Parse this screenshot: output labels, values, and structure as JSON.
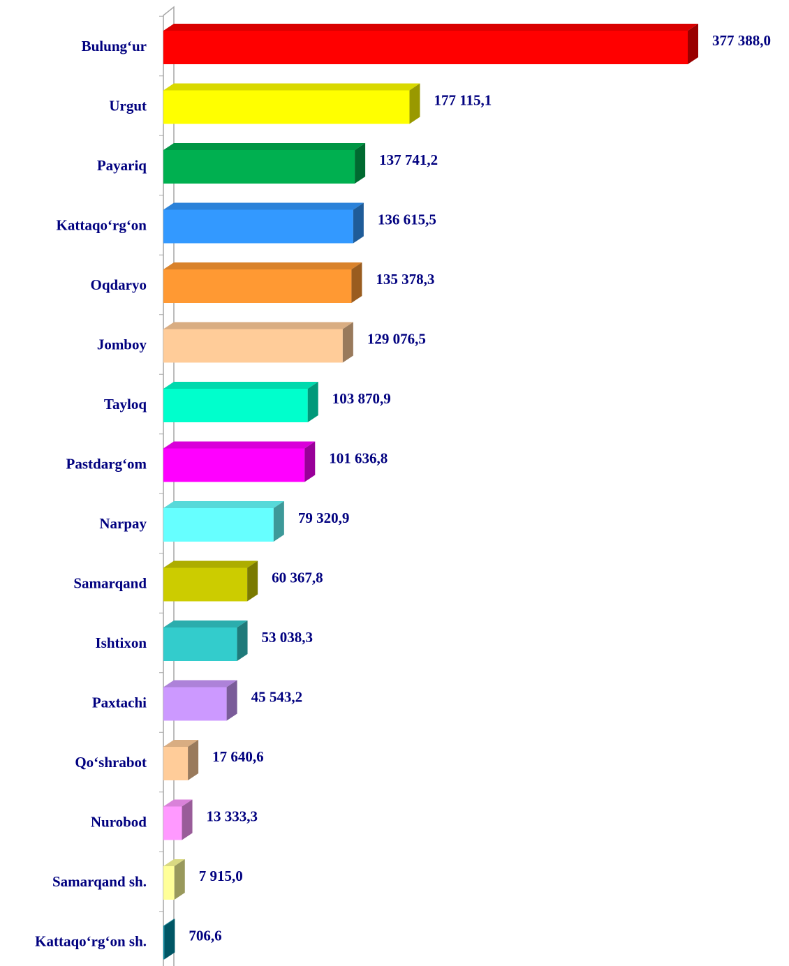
{
  "chart_data": {
    "type": "bar",
    "orientation": "horizontal",
    "three_d": true,
    "categories": [
      "Bulung‘ur",
      "Urgut",
      "Payariq",
      "Kattaqo‘rg‘on",
      "Oqdaryo",
      "Jomboy",
      "Tayloq",
      "Pastdarg‘om",
      "Narpay",
      "Samarqand",
      "Ishtixon",
      "Paxtachi",
      "Qo‘shrabot",
      "Nurobod",
      "Samarqand sh.",
      "Kattaqo‘rg‘on sh."
    ],
    "values": [
      377388.0,
      177115.1,
      137741.2,
      136615.5,
      135378.3,
      129076.5,
      103870.9,
      101636.8,
      79320.9,
      60367.8,
      53038.3,
      45543.2,
      17640.6,
      13333.3,
      7915.0,
      706.6
    ],
    "value_labels": [
      "377 388,0",
      "177 115,1",
      "137 741,2",
      "136 615,5",
      "135 378,3",
      "129 076,5",
      "103 870,9",
      "101 636,8",
      "79 320,9",
      "60 367,8",
      "53 038,3",
      "45 543,2",
      "17 640,6",
      "13 333,3",
      "7 915,0",
      "706,6"
    ],
    "colors": [
      "#ff0000",
      "#ffff00",
      "#00b050",
      "#3399ff",
      "#ff9933",
      "#ffcc99",
      "#00ffcc",
      "#ff00ff",
      "#66ffff",
      "#cccc00",
      "#33cccc",
      "#cc99ff",
      "#ffcc99",
      "#ff99ff",
      "#ffff99",
      "#008fa8"
    ]
  }
}
